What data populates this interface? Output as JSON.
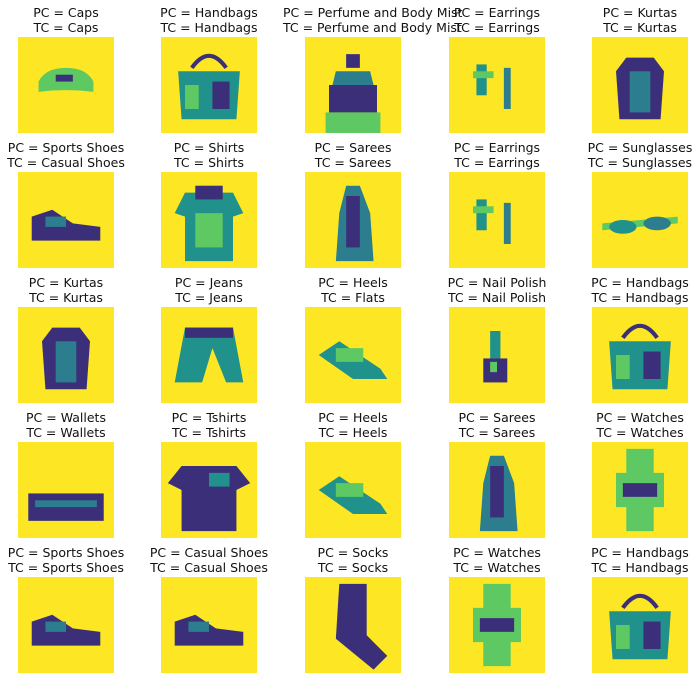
{
  "grid": [
    {
      "pc": "PC = Caps",
      "tc": "TC = Caps",
      "item": "caps-icon"
    },
    {
      "pc": "PC = Handbags",
      "tc": "TC = Handbags",
      "item": "handbag-icon"
    },
    {
      "pc": "PC = Perfume and Body Mist",
      "tc": "TC = Perfume and Body Mist",
      "item": "perfume-icon"
    },
    {
      "pc": "PC = Earrings",
      "tc": "TC = Earrings",
      "item": "earrings-icon"
    },
    {
      "pc": "PC = Kurtas",
      "tc": "TC = Kurtas",
      "item": "kurta-icon"
    },
    {
      "pc": "PC = Sports Shoes",
      "tc": "TC = Casual Shoes",
      "item": "shoe-icon"
    },
    {
      "pc": "PC = Shirts",
      "tc": "TC = Shirts",
      "item": "shirt-icon"
    },
    {
      "pc": "PC = Sarees",
      "tc": "TC = Sarees",
      "item": "saree-icon"
    },
    {
      "pc": "PC = Earrings",
      "tc": "TC = Earrings",
      "item": "earrings-icon"
    },
    {
      "pc": "PC = Sunglasses",
      "tc": "TC = Sunglasses",
      "item": "sunglasses-icon"
    },
    {
      "pc": "PC = Kurtas",
      "tc": "TC = Kurtas",
      "item": "kurta-icon"
    },
    {
      "pc": "PC = Jeans",
      "tc": "TC = Jeans",
      "item": "jeans-icon"
    },
    {
      "pc": "PC = Heels",
      "tc": "TC = Flats",
      "item": "heels-icon"
    },
    {
      "pc": "PC = Nail Polish",
      "tc": "TC = Nail Polish",
      "item": "nail-polish-icon"
    },
    {
      "pc": "PC = Handbags",
      "tc": "TC = Handbags",
      "item": "handbag-icon"
    },
    {
      "pc": "PC = Wallets",
      "tc": "TC = Wallets",
      "item": "wallet-icon"
    },
    {
      "pc": "PC = Tshirts",
      "tc": "TC = Tshirts",
      "item": "tshirt-icon"
    },
    {
      "pc": "PC = Heels",
      "tc": "TC = Heels",
      "item": "heels-icon"
    },
    {
      "pc": "PC = Sarees",
      "tc": "TC = Sarees",
      "item": "saree-icon"
    },
    {
      "pc": "PC = Watches",
      "tc": "TC = Watches",
      "item": "watch-icon"
    },
    {
      "pc": "PC = Sports Shoes",
      "tc": "TC = Sports Shoes",
      "item": "shoe-icon"
    },
    {
      "pc": "PC = Casual Shoes",
      "tc": "TC = Casual Shoes",
      "item": "shoe-icon"
    },
    {
      "pc": "PC = Socks",
      "tc": "TC = Socks",
      "item": "socks-icon"
    },
    {
      "pc": "PC = Watches",
      "tc": "TC = Watches",
      "item": "watch-icon"
    },
    {
      "pc": "PC = Handbags",
      "tc": "TC = Handbags",
      "item": "handbag-icon"
    }
  ],
  "colors": {
    "background": "#fde725",
    "dark": "#3b2f7a",
    "mid": "#2c7e8e",
    "teal": "#21918c",
    "light": "#5ec962"
  }
}
